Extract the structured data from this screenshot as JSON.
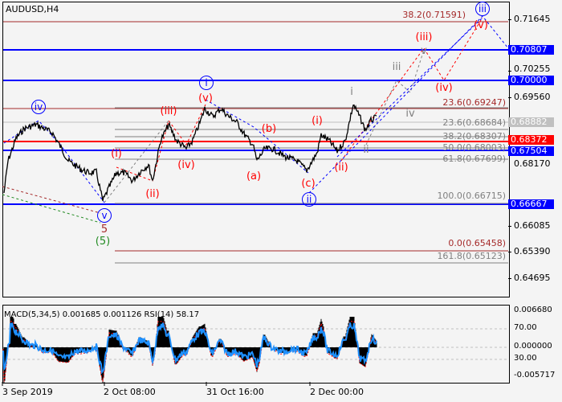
{
  "chart": {
    "symbol_title": "AUDUSD,H4",
    "price_axis": [
      "0.71645",
      "0.70255",
      "0.69560",
      "0.68170",
      "0.66085",
      "0.65390",
      "0.64695"
    ],
    "badges": [
      {
        "value": "0.70807",
        "color": "#0000ff"
      },
      {
        "value": "0.70000",
        "color": "#0000ff"
      },
      {
        "value": "0.68882",
        "color": "#c0c0c0"
      },
      {
        "value": "0.68372",
        "color": "#ff0000"
      },
      {
        "value": "0.67504",
        "color": "#0000ff"
      },
      {
        "value": "0.66667",
        "color": "#0000ff"
      }
    ],
    "fib_labels": [
      {
        "text": "38.2(0.71591)",
        "color": "#a52a2a"
      },
      {
        "text": "23.6(0.69247)",
        "color": "#a52a2a"
      },
      {
        "text": "23.6(0.68684)",
        "color": "#808080"
      },
      {
        "text": "38.2(0.68307)",
        "color": "#808080"
      },
      {
        "text": "50.0(0.68003)",
        "color": "#808080"
      },
      {
        "text": "61.8(0.67699)",
        "color": "#808080"
      },
      {
        "text": "100.0(0.66715)",
        "color": "#808080"
      },
      {
        "text": "0.0(0.65458)",
        "color": "#a52a2a"
      },
      {
        "text": "161.8(0.65123)",
        "color": "#808080"
      }
    ],
    "wave_labels": [
      {
        "text": "iv",
        "color": "#0000ff",
        "circled": true
      },
      {
        "text": "v",
        "color": "#0000ff",
        "circled": true
      },
      {
        "text": "5",
        "color": "#a52a2a"
      },
      {
        "text": "(5)",
        "color": "#228b22"
      },
      {
        "text": "(i)",
        "color": "#ff0000"
      },
      {
        "text": "(ii)",
        "color": "#ff0000"
      },
      {
        "text": "(iii)",
        "color": "#ff0000"
      },
      {
        "text": "(iv)",
        "color": "#ff0000"
      },
      {
        "text": "(v)",
        "color": "#ff0000"
      },
      {
        "text": "i",
        "color": "#0000ff",
        "circled": true
      },
      {
        "text": "(a)",
        "color": "#ff0000"
      },
      {
        "text": "(b)",
        "color": "#ff0000"
      },
      {
        "text": "(c)",
        "color": "#ff0000"
      },
      {
        "text": "ii",
        "color": "#0000ff",
        "circled": true
      },
      {
        "text": "(i)",
        "color": "#ff0000"
      },
      {
        "text": "(ii)",
        "color": "#ff0000"
      },
      {
        "text": "i",
        "color": "#808080"
      },
      {
        "text": "ii",
        "color": "#808080"
      },
      {
        "text": "iii",
        "color": "#808080"
      },
      {
        "text": "iv",
        "color": "#808080"
      },
      {
        "text": "(iii)",
        "color": "#ff0000"
      },
      {
        "text": "v",
        "color": "#808080"
      },
      {
        "text": "(iv)",
        "color": "#ff0000"
      },
      {
        "text": "(v)",
        "color": "#ff0000"
      },
      {
        "text": "iii",
        "color": "#0000ff",
        "circled": true
      }
    ]
  },
  "indicator": {
    "title": "MACD(5,34,5) 0.001685 0.001126 RSI(14) 58.17",
    "axis": [
      "0.006680",
      "70.00",
      "0.000000",
      "30.00",
      "-0.005717"
    ],
    "macd_color": "#000000",
    "signal_color": "#ff0000",
    "rsi_color": "#1e90ff"
  },
  "time_axis": [
    "3 Sep 2019",
    "2 Oct 08:00",
    "31 Oct 16:00",
    "2 Dec 00:00"
  ]
}
